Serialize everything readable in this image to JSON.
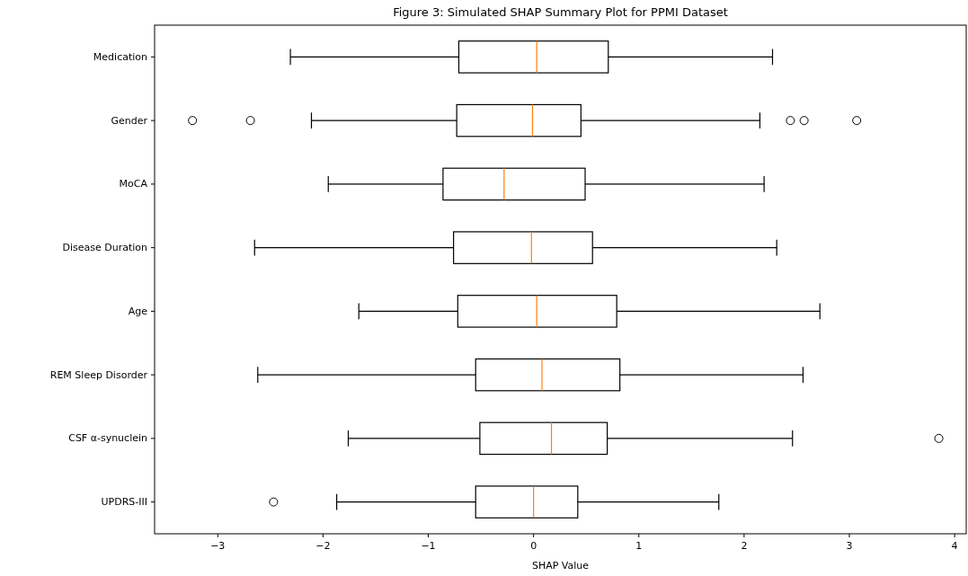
{
  "chart_data": {
    "type": "box",
    "orientation": "horizontal",
    "title": "Figure 3: Simulated SHAP Summary Plot for PPMI Dataset",
    "xlabel": "SHAP Value",
    "categories": [
      "Medication",
      "Gender",
      "MoCA",
      "Disease Duration",
      "Age",
      "REM Sleep Disorder",
      "CSF α-synuclein",
      "UPDRS-III"
    ],
    "boxes": [
      {
        "low": -2.31,
        "q1": -0.71,
        "median": 0.03,
        "q3": 0.71,
        "high": 2.27
      },
      {
        "low": -2.11,
        "q1": -0.73,
        "median": -0.01,
        "q3": 0.45,
        "high": 2.15,
        "outliers": [
          -3.24,
          -2.69,
          2.44,
          2.57,
          3.07
        ]
      },
      {
        "low": -1.95,
        "q1": -0.86,
        "median": -0.28,
        "q3": 0.49,
        "high": 2.19
      },
      {
        "low": -2.65,
        "q1": -0.76,
        "median": -0.02,
        "q3": 0.56,
        "high": 2.31
      },
      {
        "low": -1.66,
        "q1": -0.72,
        "median": 0.03,
        "q3": 0.79,
        "high": 2.72
      },
      {
        "low": -2.62,
        "q1": -0.55,
        "median": 0.08,
        "q3": 0.82,
        "high": 2.56
      },
      {
        "low": -1.76,
        "q1": -0.51,
        "median": 0.17,
        "q3": 0.7,
        "high": 2.46,
        "outliers": [
          3.85
        ]
      },
      {
        "low": -1.87,
        "q1": -0.55,
        "median": 0,
        "q3": 0.42,
        "high": 1.76,
        "outliers": [
          -2.47
        ]
      }
    ],
    "color": "#000000",
    "marker": "circle",
    "xlim": [
      -3.6,
      4.11
    ],
    "xticks": [
      {
        "value": -3,
        "label": "−3"
      },
      {
        "value": -2,
        "label": "−2"
      },
      {
        "value": -1,
        "label": "−1"
      },
      0,
      1,
      2,
      3,
      4
    ]
  }
}
